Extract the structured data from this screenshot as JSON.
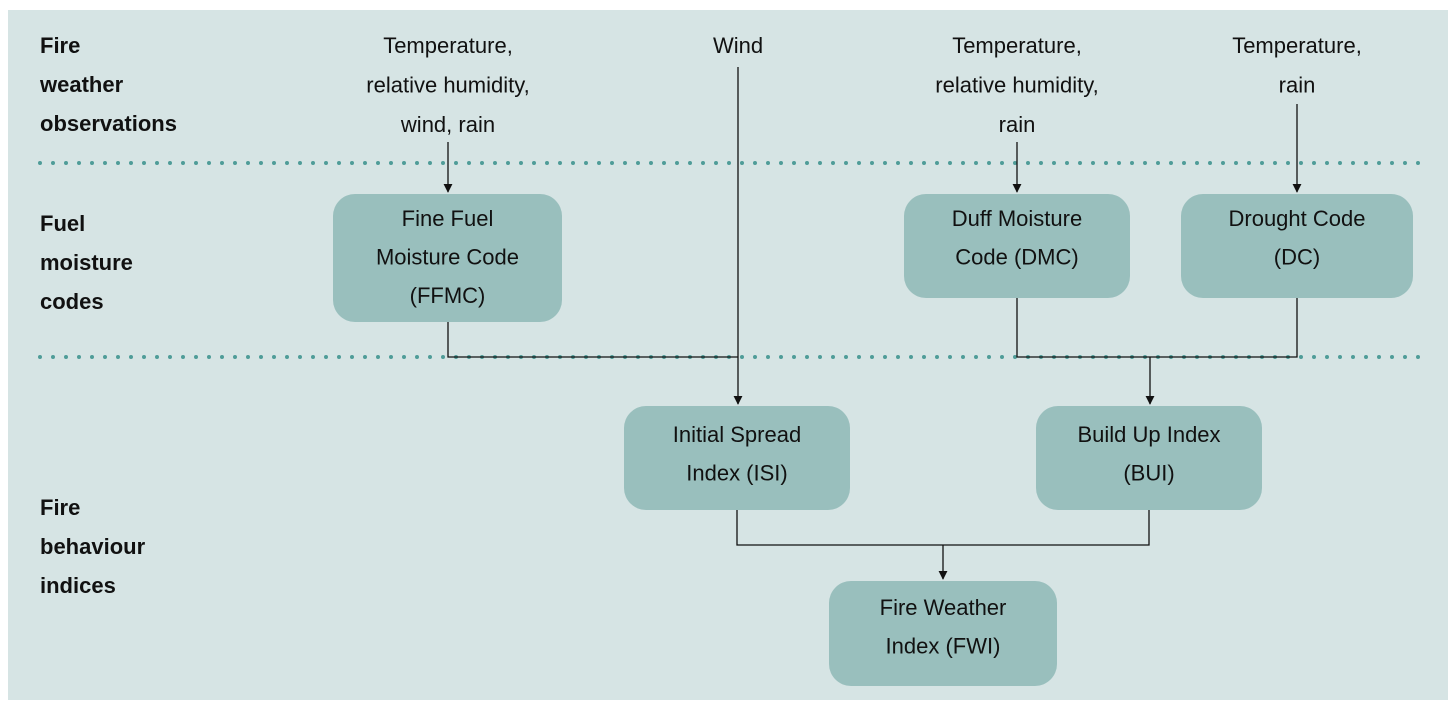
{
  "rows": [
    {
      "label": [
        "Fire",
        "weather",
        "observations"
      ]
    },
    {
      "label": [
        "Fuel",
        "moisture",
        "codes"
      ]
    },
    {
      "label": [
        "Fire",
        "behaviour",
        "indices"
      ]
    }
  ],
  "inputs": [
    {
      "label": [
        "Temperature,",
        "relative humidity,",
        "wind, rain"
      ]
    },
    {
      "label": [
        "Wind"
      ]
    },
    {
      "label": [
        "Temperature,",
        "relative humidity,",
        "rain"
      ]
    },
    {
      "label": [
        "Temperature,",
        "rain"
      ]
    }
  ],
  "nodes": [
    {
      "label": [
        "Fine Fuel",
        "Moisture Code",
        "(FFMC)"
      ]
    },
    {
      "label": [
        "Duff Moisture",
        "Code (DMC)"
      ]
    },
    {
      "label": [
        "Drought Code",
        "(DC)"
      ]
    },
    {
      "label": [
        "Initial Spread",
        "Index (ISI)"
      ]
    },
    {
      "label": [
        "Build Up Index",
        "(BUI)"
      ]
    },
    {
      "label": [
        "Fire Weather",
        "Index (FWI)"
      ]
    }
  ]
}
